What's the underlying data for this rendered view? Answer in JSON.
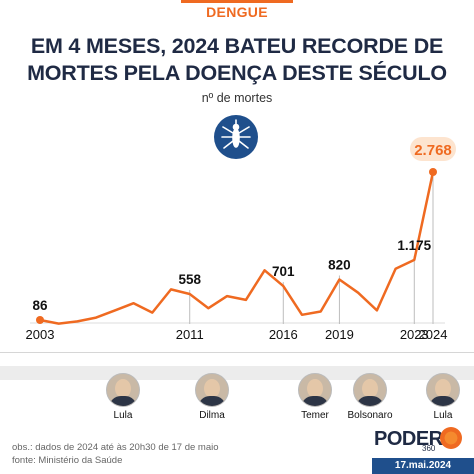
{
  "header": {
    "tag": "DENGUE",
    "title_line1": "EM 4 MESES, 2024 BATEU RECORDE DE",
    "title_line2": "MORTES PELA DOENÇA DESTE SÉCULO",
    "subtitle": "nº de mortes",
    "icon": "mosquito-icon"
  },
  "colors": {
    "accent": "#ef6a21",
    "navy": "#1f2a44",
    "badge": "#fde4cf",
    "icon_bg": "#1f4f8c"
  },
  "chart_data": {
    "type": "line",
    "x": [
      2003,
      2004,
      2005,
      2006,
      2007,
      2008,
      2009,
      2010,
      2011,
      2012,
      2013,
      2014,
      2015,
      2016,
      2017,
      2018,
      2019,
      2020,
      2021,
      2022,
      2023,
      2024
    ],
    "values": [
      86,
      20,
      60,
      130,
      260,
      390,
      220,
      640,
      558,
      300,
      520,
      450,
      986,
      701,
      180,
      240,
      820,
      580,
      260,
      1016,
      1175,
      2768
    ],
    "ylim": [
      0,
      2900
    ],
    "x_ticks": [
      "2003",
      "2011",
      "2016",
      "2019",
      "2023",
      "2024"
    ],
    "labels": [
      {
        "year": 2003,
        "text": "86"
      },
      {
        "year": 2011,
        "text": "558"
      },
      {
        "year": 2016,
        "text": "701"
      },
      {
        "year": 2019,
        "text": "820"
      },
      {
        "year": 2023,
        "text": "1.175"
      },
      {
        "year": 2024,
        "text": "2.768",
        "highlight": true
      }
    ]
  },
  "presidents": [
    {
      "name": "Lula"
    },
    {
      "name": "Dilma"
    },
    {
      "name": "Temer"
    },
    {
      "name": "Bolsonaro"
    },
    {
      "name": "Lula"
    }
  ],
  "footer": {
    "note": "obs.: dados de 2024 até às 20h30 de 17 de maio",
    "source": "fonte: Ministério da Saúde",
    "brand": "PODER",
    "brand_sub": "360",
    "date": "17.mai.2024"
  }
}
